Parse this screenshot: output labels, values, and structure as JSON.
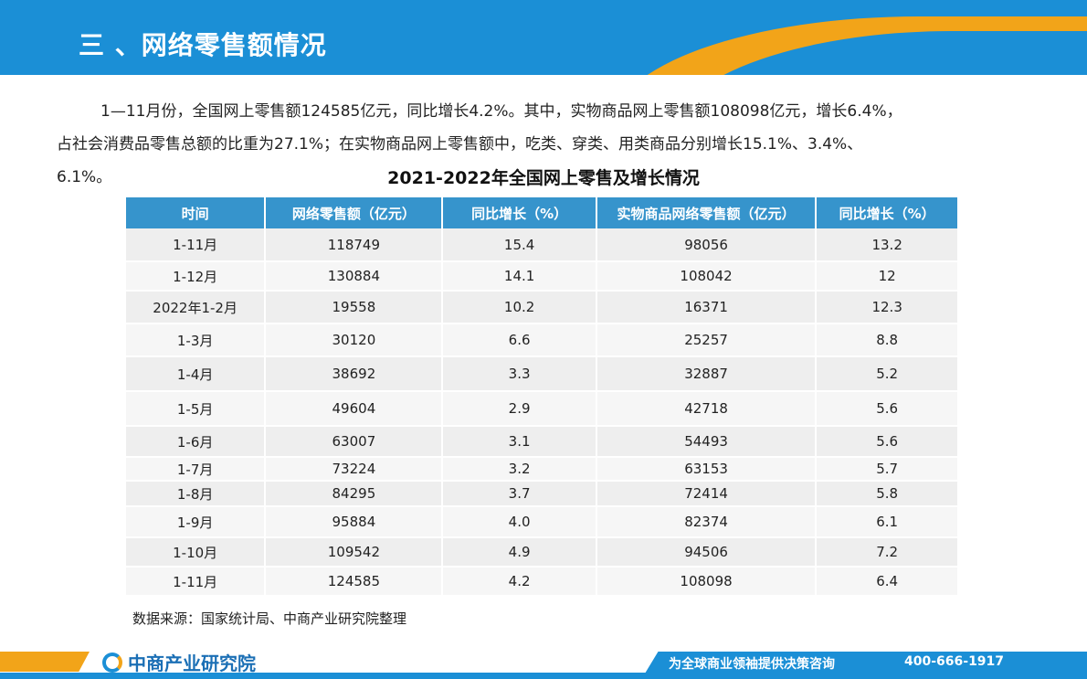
{
  "header": {
    "title": "三 、网络零售额情况"
  },
  "paragraph": {
    "line1": "1—11月份，全国网上零售额124585亿元，同比增长4.2%。其中，实物商品网上零售额108098亿元，增长6.4%，",
    "line2": "占社会消费品零售总额的比重为27.1%；在实物商品网上零售额中，吃类、穿类、用类商品分别增长15.1%、3.4%、",
    "line3": "6.1%。"
  },
  "table": {
    "title": "2021-2022年全国网上零售及增长情况",
    "headers": [
      "时间",
      "网络零售额（亿元）",
      "同比增长（%）",
      "实物商品网络零售额（亿元）",
      "同比增长（%）"
    ],
    "rows": [
      [
        "1-11月",
        "118749",
        "15.4",
        "98056",
        "13.2"
      ],
      [
        "1-12月",
        "130884",
        "14.1",
        "108042",
        "12"
      ],
      [
        "2022年1-2月",
        "19558",
        "10.2",
        "16371",
        "12.3"
      ],
      [
        "1-3月",
        "30120",
        "6.6",
        "25257",
        "8.8"
      ],
      [
        "1-4月",
        "38692",
        "3.3",
        "32887",
        "5.2"
      ],
      [
        "1-5月",
        "49604",
        "2.9",
        "42718",
        "5.6"
      ],
      [
        "1-6月",
        "63007",
        "3.1",
        "54493",
        "5.6"
      ],
      [
        "1-7月",
        "73224",
        "3.2",
        "63153",
        "5.7"
      ],
      [
        "1-8月",
        "84295",
        "3.7",
        "72414",
        "5.8"
      ],
      [
        "1-9月",
        "95884",
        "4.0",
        "82374",
        "6.1"
      ],
      [
        "1-10月",
        "109542",
        "4.9",
        "94506",
        "7.2"
      ],
      [
        "1-11月",
        "124585",
        "4.2",
        "108098",
        "6.4"
      ]
    ],
    "source": "数据来源：国家统计局、中商产业研究院整理"
  },
  "footer": {
    "logo_text": "中商产业研究院",
    "slogan": "为全球商业领袖提供决策咨询",
    "phone": "400-666-1917"
  },
  "colors": {
    "brand_blue": "#1b8fd6",
    "brand_orange": "#f2a419",
    "table_header": "#3694cc"
  }
}
